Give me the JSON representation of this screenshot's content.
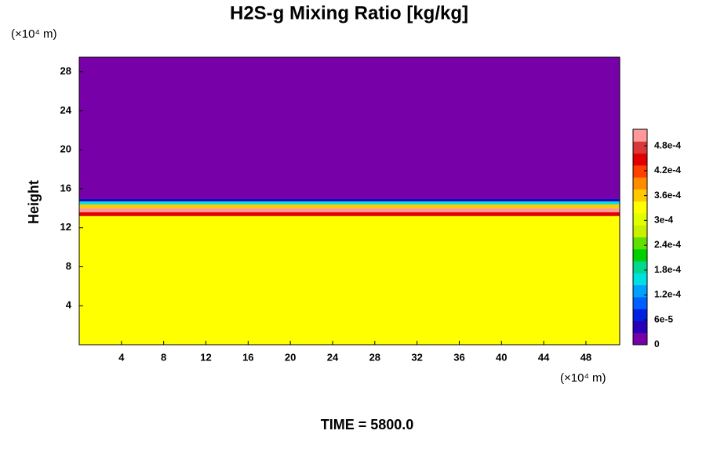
{
  "chart_data": {
    "type": "heatmap",
    "title": "H2S-g Mixing Ratio [kg/kg]",
    "ylabel": "Height",
    "xunit": "(×10⁴ m)",
    "yunit": "(×10⁴ m)",
    "footer": "TIME = 5800.0",
    "xlim": [
      0,
      51.2
    ],
    "ylim": [
      0,
      29.5
    ],
    "xticks": [
      4,
      8,
      12,
      16,
      20,
      24,
      28,
      32,
      36,
      40,
      44,
      48
    ],
    "yticks": [
      4,
      8,
      12,
      16,
      20,
      24,
      28
    ],
    "y_edges": [
      0,
      13.2,
      13.6,
      14.0,
      14.4,
      14.7,
      15.0,
      29.5
    ],
    "z": [
      0.00034,
      0.00046,
      0.0005,
      0.00036,
      0.00015,
      3e-05,
      5e-06
    ],
    "clim": [
      0,
      0.00052
    ],
    "cticks": [
      0,
      {
        "value": 6e-05,
        "label": "6e-5"
      },
      {
        "value": 0.00012,
        "label": "1.2e-4"
      },
      {
        "value": 0.00018,
        "label": "1.8e-4"
      },
      {
        "value": 0.00024,
        "label": "2.4e-4"
      },
      {
        "value": 0.0003,
        "label": "3e-4"
      },
      {
        "value": 0.00036,
        "label": "3.6e-4"
      },
      {
        "value": 0.00042,
        "label": "4.2e-4"
      },
      {
        "value": 0.00048,
        "label": "4.8e-4"
      }
    ],
    "colormap": [
      "#7800a8",
      "#2800b8",
      "#0020e0",
      "#0060ff",
      "#00a0ff",
      "#00e0e0",
      "#00d890",
      "#00d000",
      "#60e000",
      "#c8f000",
      "#e0ff00",
      "#ffff00",
      "#ffc800",
      "#ff8c00",
      "#ff4000",
      "#e00000",
      "#d83838",
      "#ff9898"
    ]
  }
}
